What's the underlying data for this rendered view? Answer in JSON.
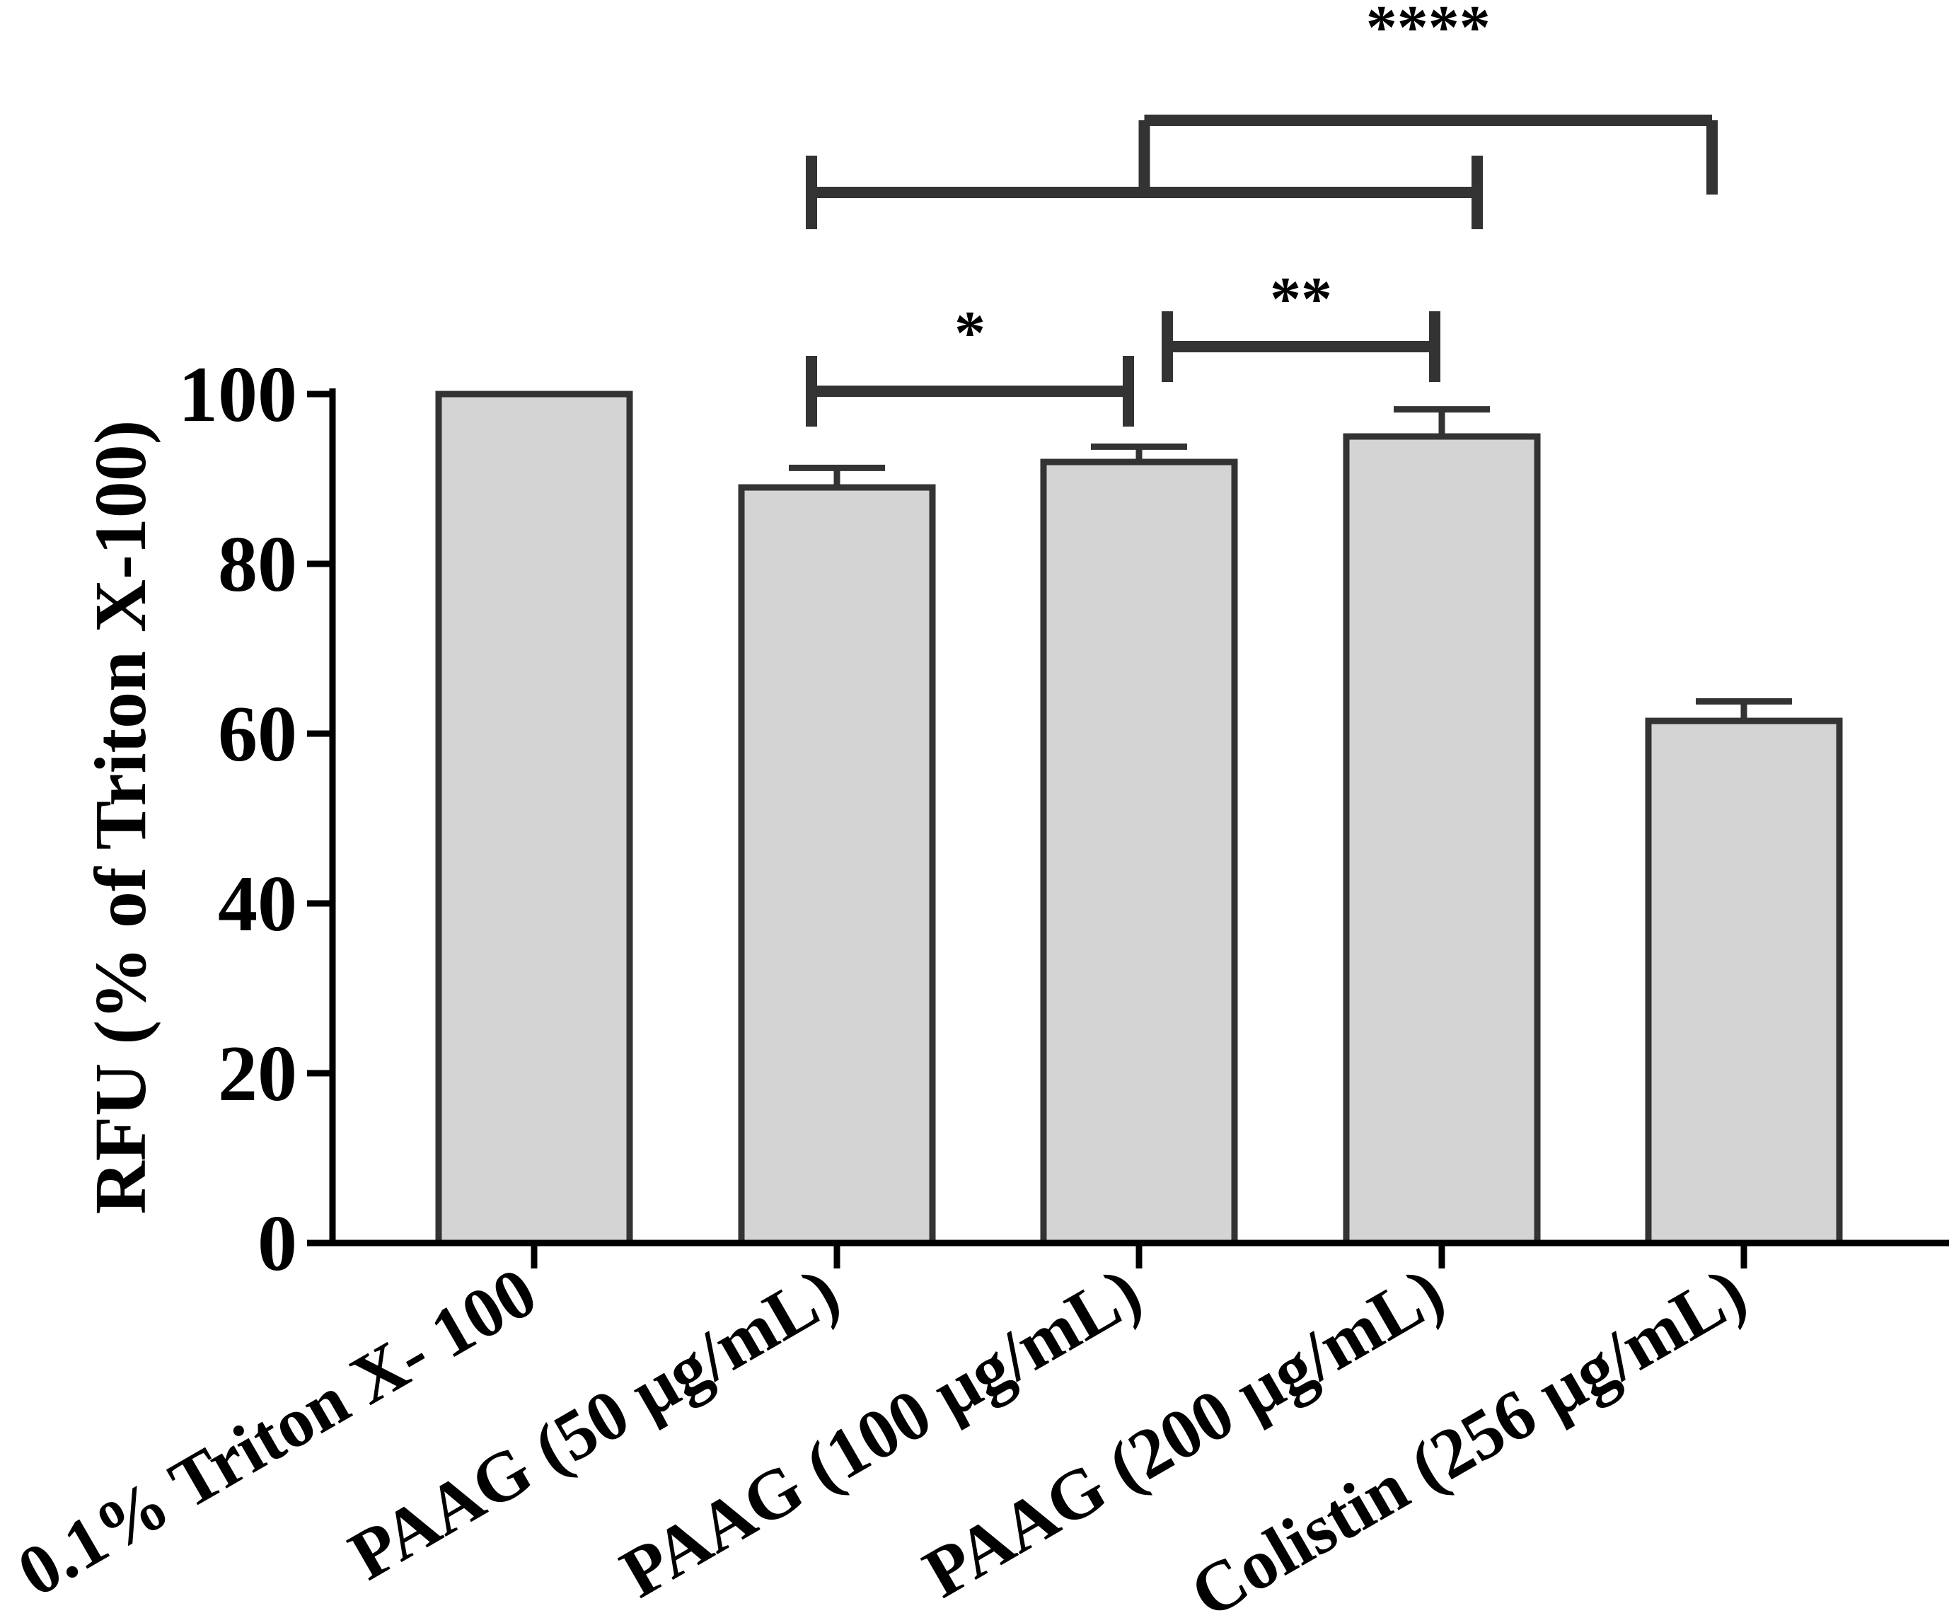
{
  "chart_data": {
    "type": "bar",
    "categories": [
      "0.1% Triton X- 100",
      "PAAG (50 μg/mL)",
      "PAAG (100 μg/mL)",
      "PAAG (200 μg/mL)",
      "Colistin (256 μg/mL)"
    ],
    "values": [
      100,
      89,
      92,
      95,
      61.5
    ],
    "errors": [
      0,
      2.3,
      1.8,
      3.2,
      2.3
    ],
    "xlabel": "",
    "ylabel": "RFU (% of Triton X-100)",
    "ylim": [
      0,
      100
    ],
    "yticks": [
      "0",
      "20",
      "40",
      "60",
      "80",
      "100"
    ],
    "grid": false,
    "bar_fill": "#d4d4d4",
    "bar_stroke": "#333333",
    "annotations": [
      {
        "label": "*",
        "from": 1,
        "to": 2,
        "level": 1
      },
      {
        "label": "**",
        "from": 2,
        "to": 3,
        "level": 1
      },
      {
        "label": "****",
        "group_from": [
          1,
          3
        ],
        "to": 4,
        "level": 2
      }
    ]
  }
}
